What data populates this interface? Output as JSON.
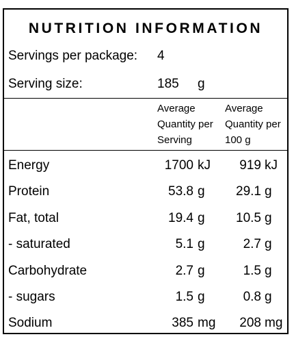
{
  "title": "NUTRITION INFORMATION",
  "servings": {
    "label": "Servings per package:",
    "value": "4"
  },
  "serving_size": {
    "label": "Serving size:",
    "value": "185",
    "unit": "g"
  },
  "column_headers": {
    "per_serving": [
      "Average",
      "Quantity per",
      "Serving"
    ],
    "per_100g": [
      "Average",
      "Quantity per",
      "100 g"
    ]
  },
  "nutrients": [
    {
      "name": "Energy",
      "per_serving": "1700",
      "serving_unit": "kJ",
      "per_100g": "919",
      "unit_100g": "kJ"
    },
    {
      "name": "Protein",
      "per_serving": "53.8",
      "serving_unit": "g",
      "per_100g": "29.1",
      "unit_100g": "g"
    },
    {
      "name": "Fat, total",
      "per_serving": "19.4",
      "serving_unit": "g",
      "per_100g": "10.5",
      "unit_100g": "g"
    },
    {
      "name": "- saturated",
      "per_serving": "5.1",
      "serving_unit": "g",
      "per_100g": "2.7",
      "unit_100g": "g"
    },
    {
      "name": "Carbohydrate",
      "per_serving": "2.7",
      "serving_unit": "g",
      "per_100g": "1.5",
      "unit_100g": "g"
    },
    {
      "name": "- sugars",
      "per_serving": "1.5",
      "serving_unit": "g",
      "per_100g": "0.8",
      "unit_100g": "g"
    },
    {
      "name": "Sodium",
      "per_serving": "385",
      "serving_unit": "mg",
      "per_100g": "208",
      "unit_100g": "mg"
    }
  ]
}
